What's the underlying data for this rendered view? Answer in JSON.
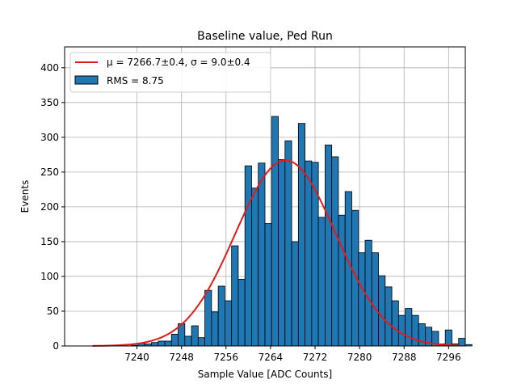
{
  "chart_data": {
    "type": "bar",
    "title": "Baseline value, Ped Run",
    "xlabel": "Sample Value [ADC Counts]",
    "ylabel": "Events",
    "xlim": [
      7227,
      7299
    ],
    "ylim": [
      0,
      430
    ],
    "bin_width": 1.2,
    "bin_start": 7239.0,
    "counts": [
      1,
      4,
      3,
      5,
      7,
      7,
      17,
      32,
      14,
      29,
      12,
      80,
      49,
      86,
      65,
      144,
      96,
      259,
      227,
      263,
      176,
      330,
      268,
      295,
      150,
      320,
      266,
      264,
      185,
      289,
      272,
      188,
      222,
      195,
      134,
      152,
      134,
      101,
      85,
      65,
      44,
      54,
      44,
      32,
      27,
      21,
      3,
      23,
      3,
      11,
      2
    ],
    "xticks": [
      7240,
      7248,
      7256,
      7264,
      7272,
      7280,
      7288,
      7296
    ],
    "xtick_labels": [
      "7240",
      "7248",
      "7256",
      "7264",
      "7272",
      "7280",
      "7288",
      "7296"
    ],
    "yticks": [
      0,
      50,
      100,
      150,
      200,
      250,
      300,
      350,
      400
    ],
    "ytick_labels": [
      "0",
      "50",
      "100",
      "150",
      "200",
      "250",
      "300",
      "350",
      "400"
    ],
    "grid": true,
    "legend_position": "top-left",
    "fit": {
      "type": "gaussian",
      "mu": 7266.7,
      "sigma": 9.0,
      "amplitude": 267,
      "x_range": [
        7232,
        7298
      ]
    },
    "legend": [
      {
        "label": "μ = 7266.7±0.4, σ = 9.0±0.4",
        "kind": "line"
      },
      {
        "label": "RMS = 8.75",
        "kind": "patch"
      }
    ]
  },
  "colors": {
    "bar_fill": "#1f77b4",
    "bar_edge": "#000000",
    "fit_line": "#e41a1c",
    "grid": "#b0b0b0"
  }
}
